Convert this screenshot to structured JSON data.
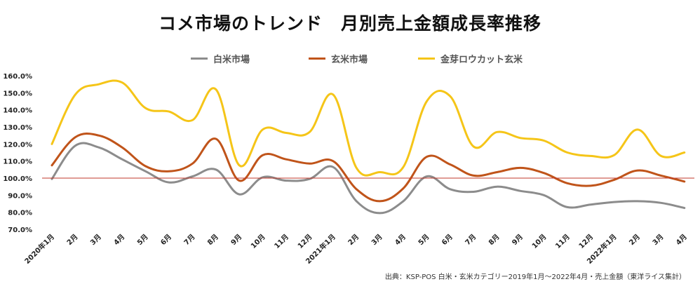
{
  "chart_data": {
    "type": "line",
    "title": "コメ市場のトレンド　月別売上金額成長率推移",
    "categories": [
      "2020年1月",
      "2月",
      "3月",
      "4月",
      "5月",
      "6月",
      "7月",
      "8月",
      "9月",
      "10月",
      "11月",
      "12月",
      "2021年1月",
      "2月",
      "3月",
      "4月",
      "5月",
      "6月",
      "7月",
      "8月",
      "9月",
      "10月",
      "11月",
      "12月",
      "2022年1月",
      "2月",
      "3月",
      "4月"
    ],
    "yticks": [
      "160.0%",
      "150.0%",
      "140.0%",
      "130.0%",
      "120.0%",
      "110.0%",
      "100.0%",
      "90.0%",
      "80.0%",
      "70.0%"
    ],
    "ylim": [
      70,
      160
    ],
    "reference_line": 100,
    "xlabel": "",
    "ylabel": "",
    "grid": false,
    "legend_position": "top",
    "series": [
      {
        "name": "白米市場",
        "color": "#8c8c8c",
        "values": [
          99.5,
          119,
          118,
          111,
          104,
          97.5,
          101,
          105,
          90.5,
          100.5,
          98.5,
          99.5,
          106.5,
          86.5,
          79.5,
          86.5,
          101,
          93.5,
          92,
          95,
          92.5,
          90,
          83,
          84.5,
          86,
          86.5,
          85.5,
          82.5
        ]
      },
      {
        "name": "玄米市場",
        "color": "#c0541a",
        "values": [
          107.5,
          124,
          125,
          118,
          107,
          104,
          108.5,
          123,
          98.5,
          113.5,
          111,
          108.5,
          110,
          93.5,
          86.5,
          94,
          112.5,
          108,
          101.5,
          103.5,
          106,
          103,
          97,
          95.5,
          99,
          104.5,
          101.5,
          98
        ]
      },
      {
        "name": "金芽ロウカット玄米",
        "color": "#f5c518",
        "values": [
          120,
          149,
          155,
          156,
          141,
          139,
          134,
          152,
          107.5,
          128.5,
          126.5,
          127,
          149,
          106,
          103.5,
          106.5,
          145,
          148,
          118.5,
          127,
          123.5,
          122,
          115,
          113,
          113.5,
          128.5,
          113,
          115
        ]
      }
    ]
  },
  "source": "出典：KSP-POS 白米・玄米カテゴリー2019年1月～2022年4月・売上金額（東洋ライス集計）"
}
